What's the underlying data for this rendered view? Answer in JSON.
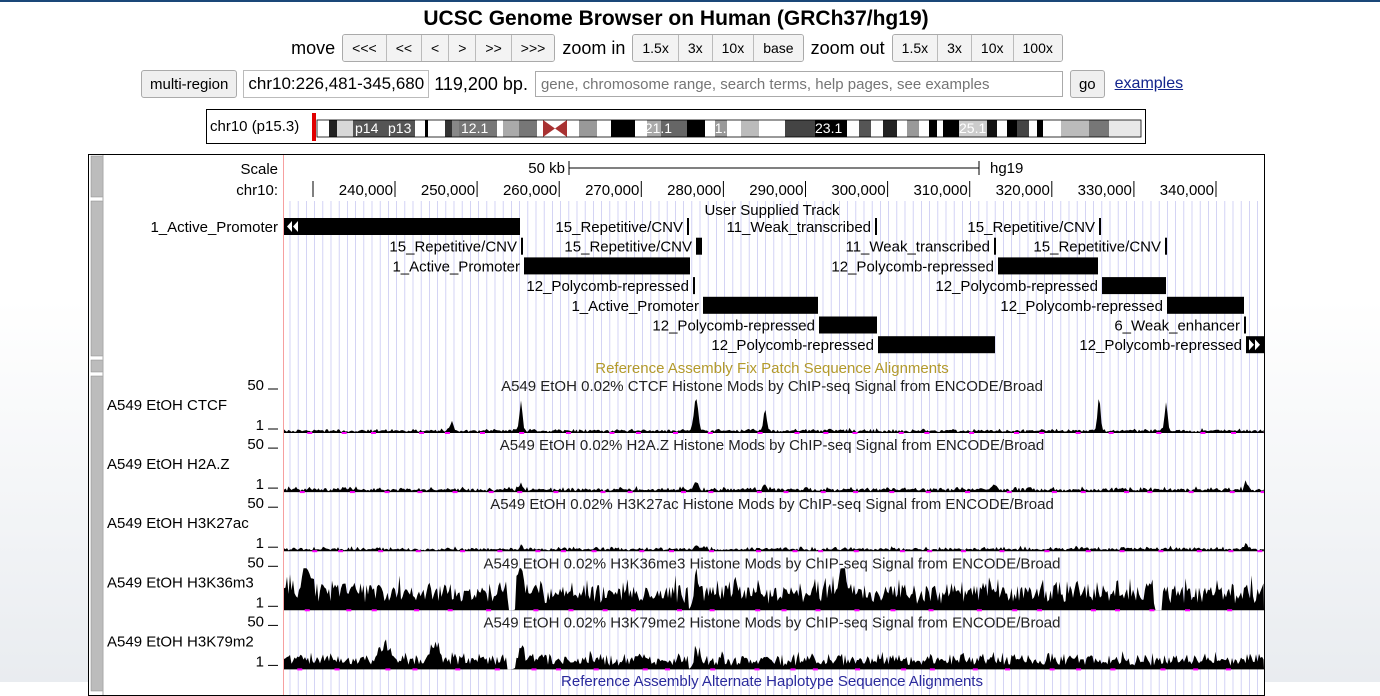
{
  "title": "UCSC Genome Browser on Human (GRCh37/hg19)",
  "nav": {
    "move_label": "move",
    "move_buttons": [
      "<<<",
      "<<",
      "<",
      ">",
      ">>",
      ">>>"
    ],
    "zoom_in_label": "zoom in",
    "zoom_in_buttons": [
      "1.5x",
      "3x",
      "10x",
      "base"
    ],
    "zoom_out_label": "zoom out",
    "zoom_out_buttons": [
      "1.5x",
      "3x",
      "10x",
      "100x"
    ]
  },
  "position": {
    "multi_region": "multi-region",
    "value": "chr10:226,481-345,680",
    "size": "119,200 bp.",
    "search_placeholder": "gene, chromosome range, search terms, help pages, see examples",
    "go": "go",
    "examples": "examples"
  },
  "ideogram": {
    "chrom_label": "chr10 (p15.3)",
    "bands": [
      "p14",
      "p13",
      "12.1",
      "q21.1",
      "21.3",
      "23.1",
      "25.1"
    ]
  },
  "ruler": {
    "scale_label": "Scale",
    "scale_value": "50 kb",
    "assembly": "hg19",
    "chrom_label": "chr10:",
    "ticks": [
      "240,000",
      "250,000",
      "260,000",
      "270,000",
      "280,000",
      "290,000",
      "300,000",
      "310,000",
      "320,000",
      "330,000",
      "340,000"
    ]
  },
  "user_track": {
    "title": "User Supplied Track",
    "features": [
      {
        "label": "1_Active_Promoter",
        "start": 0,
        "end": 236,
        "row": 0,
        "cont_left": true
      },
      {
        "label": "15_Repetitive/CNV",
        "start": 403,
        "end": 405,
        "row": 0
      },
      {
        "label": "11_Weak_transcribed",
        "start": 591,
        "end": 593,
        "row": 0
      },
      {
        "label": "15_Repetitive/CNV",
        "start": 815,
        "end": 817,
        "row": 0
      },
      {
        "label": "15_Repetitive/CNV",
        "start": 237,
        "end": 239,
        "row": 1
      },
      {
        "label": "15_Repetitive/CNV",
        "start": 412,
        "end": 418,
        "row": 1
      },
      {
        "label": "11_Weak_transcribed",
        "start": 710,
        "end": 712,
        "row": 1
      },
      {
        "label": "15_Repetitive/CNV",
        "start": 881,
        "end": 883,
        "row": 1
      },
      {
        "label": "1_Active_Promoter",
        "start": 240,
        "end": 406,
        "row": 2
      },
      {
        "label": "12_Polycomb-repressed",
        "start": 714,
        "end": 814,
        "row": 2
      },
      {
        "label": "12_Polycomb-repressed",
        "start": 409,
        "end": 411,
        "row": 3
      },
      {
        "label": "12_Polycomb-repressed",
        "start": 818,
        "end": 882,
        "row": 3
      },
      {
        "label": "1_Active_Promoter",
        "start": 419,
        "end": 534,
        "row": 4
      },
      {
        "label": "12_Polycomb-repressed",
        "start": 883,
        "end": 960,
        "row": 4
      },
      {
        "label": "12_Polycomb-repressed",
        "start": 535,
        "end": 593,
        "row": 5
      },
      {
        "label": "6_Weak_enhancer",
        "start": 960,
        "end": 962,
        "row": 5
      },
      {
        "label": "12_Polycomb-repressed",
        "start": 594,
        "end": 711,
        "row": 6
      },
      {
        "label": "12_Polycomb-repressed",
        "start": 962,
        "end": 980,
        "row": 6,
        "cont_right": true
      }
    ]
  },
  "fix_patch_title": "Reference Assembly Fix Patch Sequence Alignments",
  "signal_tracks": [
    {
      "name": "A549 EtOH CTCF",
      "title": "A549 EtOH 0.02% CTCF Histone Mods by ChIP-seq Signal from ENCODE/Broad",
      "max": "50",
      "min": "1",
      "kind": "ctcf"
    },
    {
      "name": "A549 EtOH H2A.Z",
      "title": "A549 EtOH 0.02% H2A.Z Histone Mods by ChIP-seq Signal from ENCODE/Broad",
      "max": "50",
      "min": "1",
      "kind": "h2az"
    },
    {
      "name": "A549 EtOH H3K27ac",
      "title": "A549 EtOH 0.02% H3K27ac Histone Mods by ChIP-seq Signal from ENCODE/Broad",
      "max": "50",
      "min": "1",
      "kind": "h3k27ac"
    },
    {
      "name": "A549 EtOH H3K36m3",
      "title": "A549 EtOH 0.02% H3K36me3 Histone Mods by ChIP-seq Signal from ENCODE/Broad",
      "max": "50",
      "min": "1",
      "kind": "h3k36"
    },
    {
      "name": "A549 EtOH H3K79m2",
      "title": "A549 EtOH 0.02% H3K79me2 Histone Mods by ChIP-seq Signal from ENCODE/Broad",
      "max": "50",
      "min": "1",
      "kind": "h3k79"
    }
  ],
  "alt_haplotype_title": "Reference Assembly Alternate Haplotype Sequence Alignments",
  "colors": {
    "track_title_olive": "#b39a2c",
    "track_title_blue": "#2a2a9c",
    "grid": "#c9c9f2",
    "magenta": "#ff00ff",
    "link": "#12248c"
  }
}
